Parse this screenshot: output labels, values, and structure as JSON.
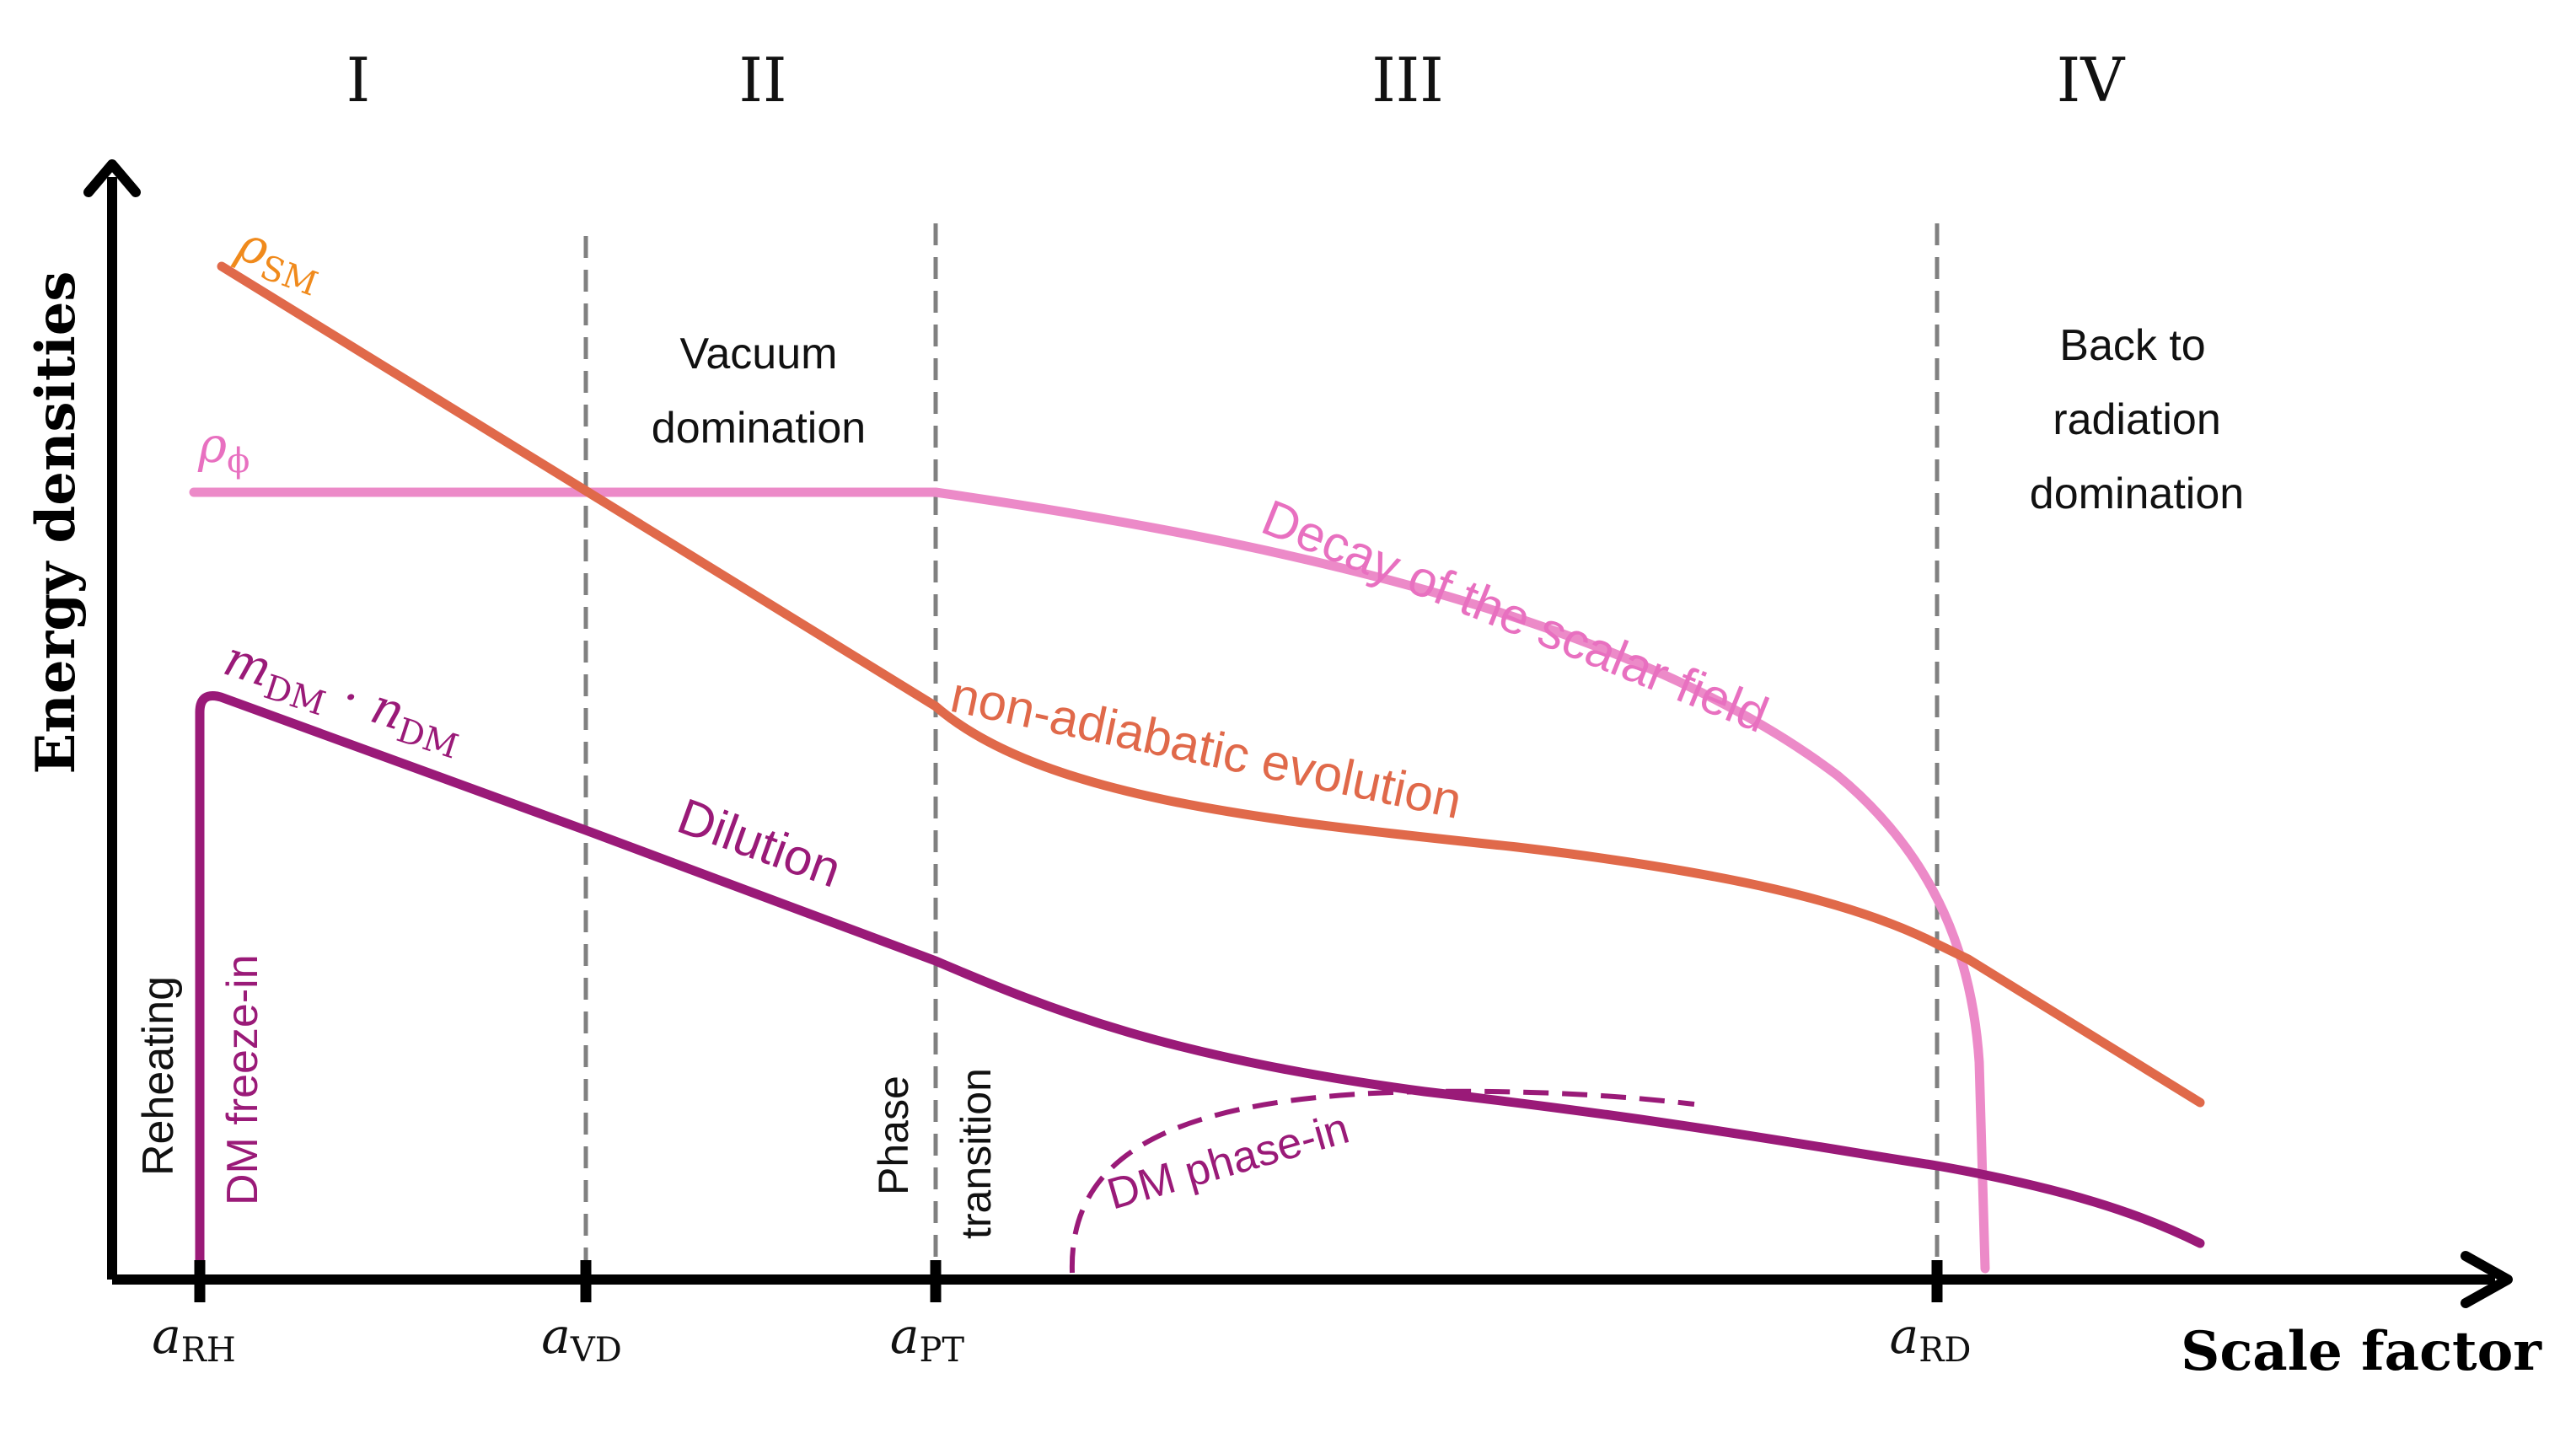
{
  "diagram": {
    "title": "",
    "axes": {
      "ylabel": "Energy densities",
      "xlabel": "Scale factor"
    },
    "ticks": [
      {
        "sym": "a",
        "sub": "RH"
      },
      {
        "sym": "a",
        "sub": "VD"
      },
      {
        "sym": "a",
        "sub": "PT"
      },
      {
        "sym": "a",
        "sub": "RD"
      }
    ],
    "regions": [
      "I",
      "II",
      "III",
      "IV"
    ],
    "region_notes": {
      "vacuum": [
        "Vacuum",
        "domination"
      ],
      "radiation": [
        "Back to",
        "radiation",
        "domination"
      ]
    },
    "curve_labels": {
      "rho_sm": {
        "sym": "ρ",
        "sub": "SM"
      },
      "rho_phi": {
        "sym": "ρ",
        "sub": "ϕ"
      },
      "dm_density": {
        "m": "m",
        "m_sub": "DM",
        "dot": " · ",
        "n": "n",
        "n_sub": "DM"
      },
      "decay": "Decay of the scalar field",
      "non_adiabatic": "non-adiabatic evolution",
      "dilution": "Dilution",
      "dm_phase_in": "DM phase-in",
      "reheating": "Reheating",
      "dm_freeze_in": "DM freeze-in",
      "phase": "Phase",
      "transition": "transition"
    },
    "colors": {
      "axis": "#000000",
      "guide": "#808080",
      "rho_sm": "#e0694a",
      "rho_sm_label": "#f08a1c",
      "rho_phi": "#ec8ac8",
      "dm": "#9a1a78",
      "text": "#111111"
    }
  }
}
